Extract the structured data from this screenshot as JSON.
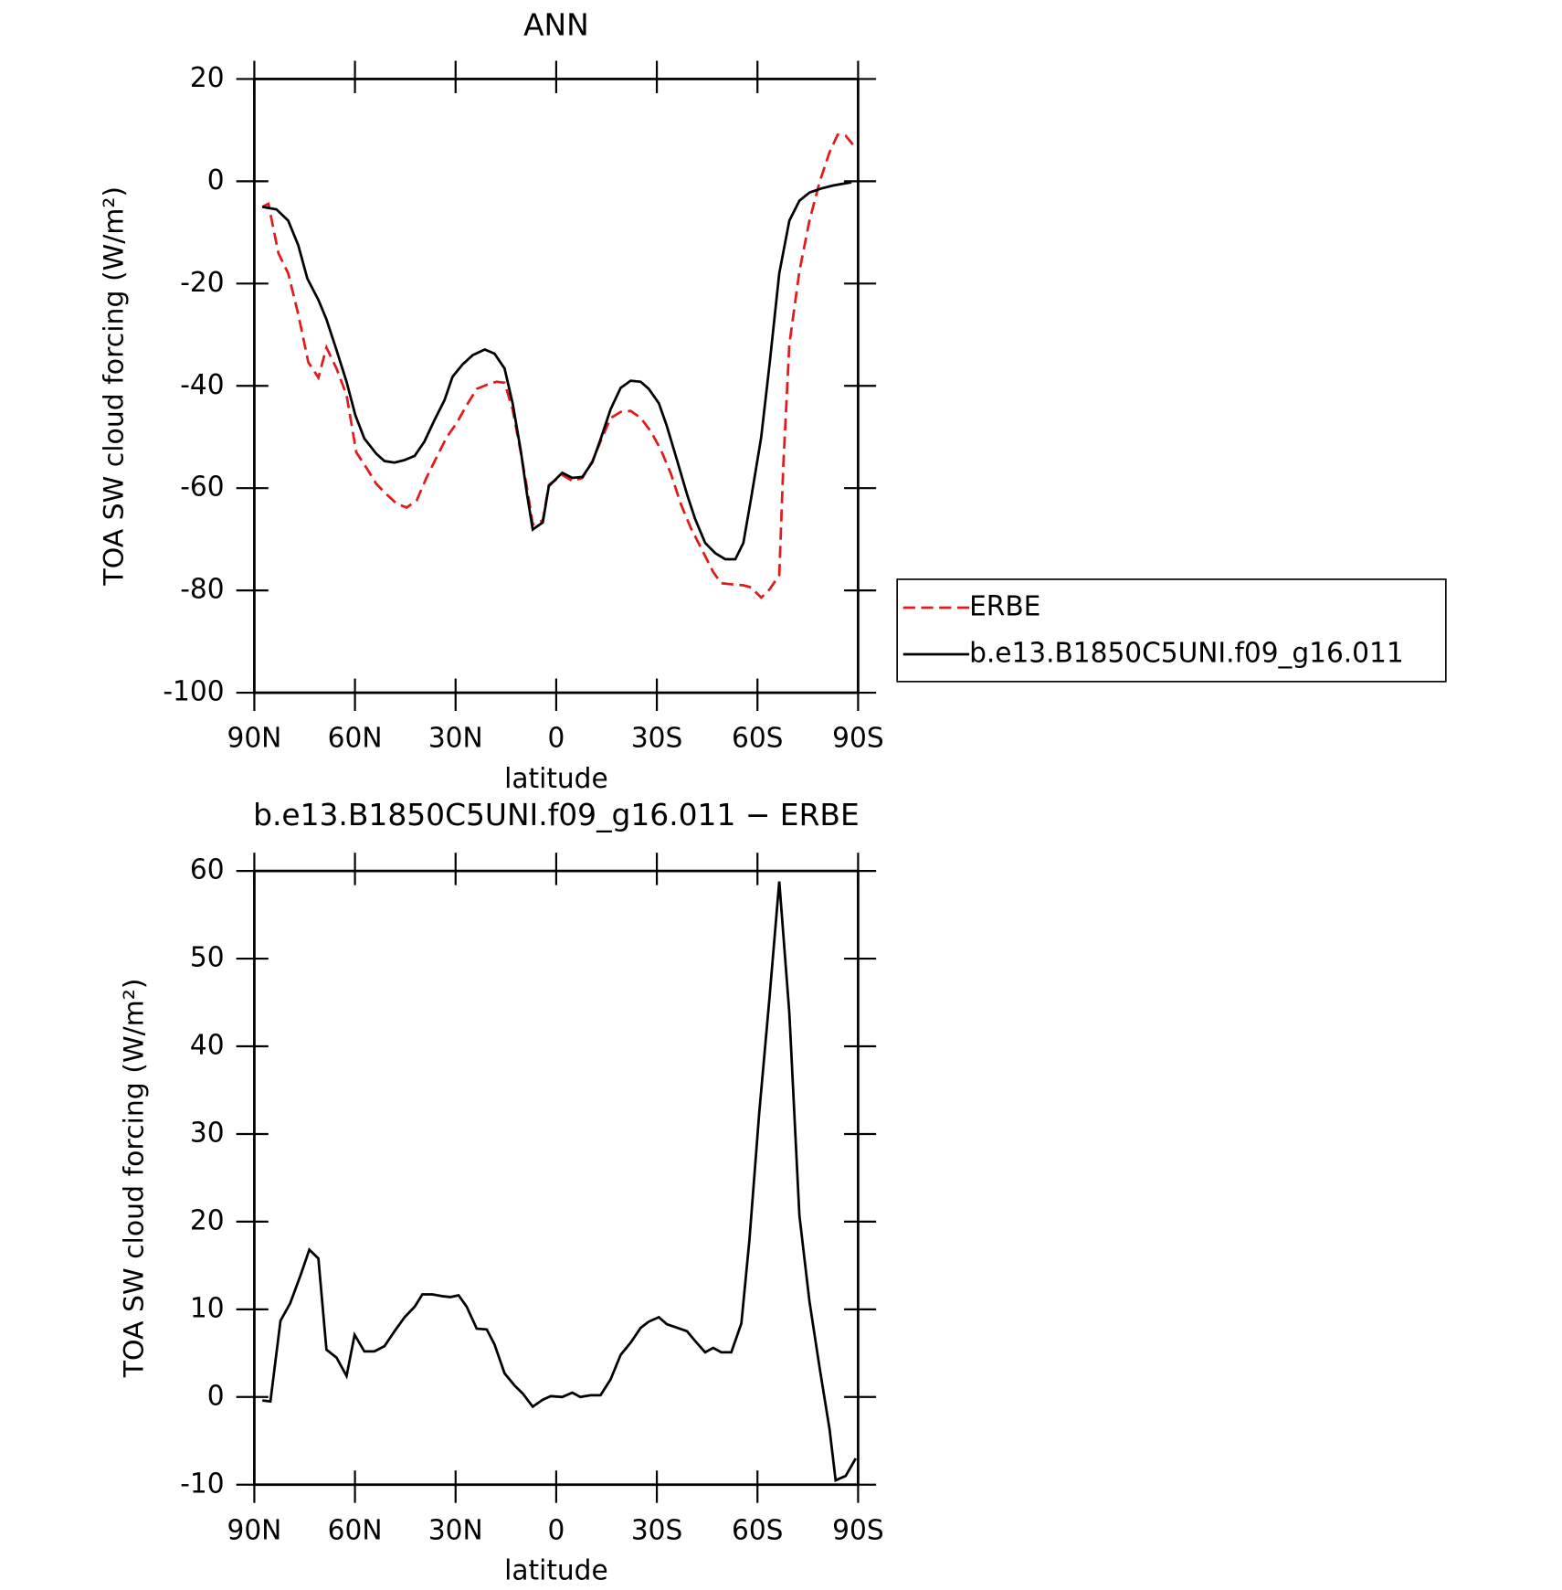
{
  "chart_data": [
    {
      "type": "line",
      "title": "ANN",
      "xlabel": "latitude",
      "ylabel": "TOA SW cloud forcing (W/m²)",
      "xlim": [
        90,
        -90
      ],
      "xticks": [
        {
          "value": 90,
          "label": "90N"
        },
        {
          "value": 60,
          "label": "60N"
        },
        {
          "value": 30,
          "label": "30N"
        },
        0,
        {
          "value": -30,
          "label": "30S"
        },
        {
          "value": -60,
          "label": "60S"
        },
        {
          "value": -90,
          "label": "90S"
        }
      ],
      "ylim": [
        -100,
        20
      ],
      "yticks": [
        -100,
        -80,
        -60,
        -40,
        -20,
        0,
        20
      ],
      "legend": "right",
      "series": [
        {
          "name": "ERBE",
          "color": "#e31a1c",
          "dashed": true,
          "x": [
            87.6,
            85.8,
            82.8,
            79.9,
            76.9,
            73.9,
            70.9,
            68.5,
            65.5,
            62.5,
            59.6,
            56.6,
            53.6,
            50.6,
            47.6,
            44.6,
            41.6,
            38.7,
            35.7,
            32.7,
            29.7,
            26.7,
            23.7,
            20.7,
            17.8,
            15.4,
            13,
            10.6,
            8.8,
            7,
            4,
            2.2,
            -1.8,
            -4.8,
            -7.8,
            -10.8,
            -13.2,
            -16.2,
            -19.2,
            -22.2,
            -25.2,
            -28.2,
            -31.2,
            -34.2,
            -37.2,
            -40.2,
            -43.2,
            -46.8,
            -49.2,
            -52.2,
            -55.8,
            -58.1,
            -61.1,
            -63.6,
            -66.5,
            -67.7,
            -69.5,
            -72.5,
            -75.5,
            -78.5,
            -81.5,
            -83.9,
            -86.3,
            -89.3
          ],
          "values": [
            -5,
            -4.4,
            -14.1,
            -18,
            -26,
            -35.4,
            -38.4,
            -32.5,
            -36.6,
            -41.8,
            -53,
            -56,
            -59.2,
            -61.2,
            -63,
            -63.8,
            -62.4,
            -58,
            -54,
            -50.1,
            -47.3,
            -43.8,
            -40.6,
            -39.8,
            -39.2,
            -39.4,
            -44.6,
            -52.9,
            -59.6,
            -67.1,
            -66.3,
            -59.4,
            -57.4,
            -58.6,
            -58,
            -54.7,
            -50.9,
            -46.3,
            -45.1,
            -44.9,
            -46.3,
            -48.9,
            -52.5,
            -57.2,
            -63.2,
            -67.9,
            -71.7,
            -76.4,
            -78.6,
            -78.8,
            -79,
            -79.4,
            -81.4,
            -79.8,
            -77,
            -55.6,
            -31.9,
            -17.6,
            -7.7,
            -0.2,
            5.7,
            9.1,
            8.9,
            6.5
          ]
        },
        {
          "name": "b.e13.B1850C5UNI.f09_g16.011",
          "color": "#000000",
          "dashed": false,
          "x": [
            87.6,
            83.4,
            79.9,
            76.9,
            74.2,
            70.9,
            68.5,
            65.5,
            62.5,
            59.9,
            57.2,
            53.6,
            51.2,
            48.2,
            45.2,
            42.2,
            39.3,
            36.3,
            33.3,
            30.9,
            27.9,
            24.9,
            21.3,
            18.4,
            15.4,
            13,
            10.6,
            8.8,
            7,
            4,
            2.2,
            -1.8,
            -4.8,
            -7.8,
            -10.8,
            -13.2,
            -16.2,
            -19.2,
            -22.2,
            -25.2,
            -27.6,
            -30.6,
            -33,
            -36,
            -39,
            -41.4,
            -44.4,
            -47.4,
            -50.4,
            -53.4,
            -55.8,
            -58.1,
            -61.1,
            -63.6,
            -66.5,
            -69.5,
            -72.5,
            -75.5,
            -79.1,
            -82.7,
            -88
          ],
          "values": [
            -5,
            -5.5,
            -7.7,
            -12.5,
            -19,
            -23.2,
            -27,
            -33,
            -39.2,
            -45.7,
            -50.3,
            -53.3,
            -54.7,
            -55,
            -54.5,
            -53.7,
            -50.9,
            -46.7,
            -42.8,
            -38.2,
            -35.8,
            -34,
            -32.9,
            -33.7,
            -36.6,
            -43.4,
            -52.5,
            -60.8,
            -68.1,
            -66.7,
            -59.6,
            -57,
            -58,
            -57.8,
            -54.9,
            -50.5,
            -44.6,
            -40.4,
            -39,
            -39.2,
            -40.6,
            -43.4,
            -47.9,
            -54.5,
            -61.2,
            -66,
            -70.7,
            -72.7,
            -73.9,
            -73.9,
            -70.7,
            -62,
            -50.1,
            -35.8,
            -18,
            -7.7,
            -3.8,
            -2.2,
            -1.4,
            -0.8,
            -0.2
          ]
        }
      ]
    },
    {
      "type": "line",
      "title": "b.e13.B1850C5UNI.f09_g16.011 − ERBE",
      "xlabel": "latitude",
      "ylabel": "TOA SW cloud forcing (W/m²)",
      "xlim": [
        90,
        -90
      ],
      "xticks": [
        {
          "value": 90,
          "label": "90N"
        },
        {
          "value": 60,
          "label": "60N"
        },
        {
          "value": 30,
          "label": "30N"
        },
        0,
        {
          "value": -30,
          "label": "30S"
        },
        {
          "value": -60,
          "label": "60S"
        },
        {
          "value": -90,
          "label": "90S"
        }
      ],
      "ylim": [
        -10,
        60
      ],
      "yticks": [
        -10,
        0,
        10,
        20,
        30,
        40,
        50,
        60
      ],
      "series": [
        {
          "color": "#000000",
          "dashed": false,
          "x": [
            87.6,
            85.2,
            82.2,
            79.3,
            76.3,
            73.6,
            70.9,
            68.5,
            65.5,
            62.5,
            60.1,
            57.2,
            54.2,
            51.2,
            48.2,
            45.2,
            42.2,
            39.9,
            36.9,
            33.9,
            31.5,
            29.1,
            26.7,
            23.7,
            20.7,
            18.4,
            15.4,
            12.4,
            10,
            7,
            4,
            1.6,
            -1.8,
            -4.8,
            -7.2,
            -10.2,
            -13.2,
            -16.2,
            -19.2,
            -22.2,
            -25.2,
            -27.6,
            -30.6,
            -33,
            -36,
            -39,
            -41.4,
            -44.4,
            -46.8,
            -49.2,
            -52.2,
            -55.2,
            -57.6,
            -60.5,
            -63.6,
            -66.5,
            -69.5,
            -72.5,
            -75.5,
            -78.5,
            -81.5,
            -83.3,
            -86.3,
            -89.3
          ],
          "values": [
            -0.4,
            -0.5,
            8.7,
            10.7,
            13.8,
            16.8,
            15.8,
            5.4,
            4.5,
            2.4,
            7.1,
            5.2,
            5.2,
            5.8,
            7.5,
            9.1,
            10.3,
            11.7,
            11.7,
            11.5,
            11.4,
            11.6,
            10.3,
            7.8,
            7.7,
            6,
            2.7,
            1.3,
            0.4,
            -1.1,
            -0.3,
            0.1,
            0,
            0.5,
            0,
            0.2,
            0.2,
            2,
            4.8,
            6.2,
            7.9,
            8.6,
            9.1,
            8.3,
            7.9,
            7.5,
            6.4,
            5.1,
            5.6,
            5.1,
            5.1,
            8.4,
            17.9,
            32.3,
            45.6,
            58.8,
            43.8,
            20.7,
            10.9,
            3.4,
            -3.7,
            -9.5,
            -9,
            -7
          ]
        }
      ]
    }
  ]
}
